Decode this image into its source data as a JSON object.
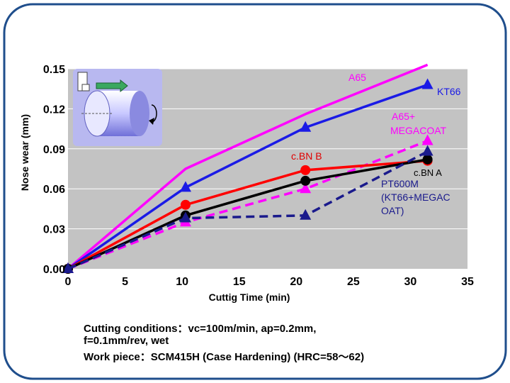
{
  "chart_data": {
    "type": "line",
    "xlabel": "Cuttig Time (min)",
    "ylabel": "Nose wear (mm)",
    "xlim": [
      0,
      35
    ],
    "ylim": [
      0,
      0.15
    ],
    "xticks": [
      "0",
      "5",
      "10",
      "15",
      "20",
      "25",
      "30",
      "35"
    ],
    "yticks": [
      "0.00",
      "0.03",
      "0.06",
      "0.09",
      "0.12",
      "0.15"
    ],
    "grid": "horizontal",
    "legend": "inline labels",
    "series": [
      {
        "name": "A65",
        "color": "#ff00ff",
        "dash": false,
        "marker": "none",
        "points": [
          [
            0,
            0
          ],
          [
            10.3,
            0.075
          ],
          [
            20.8,
            0.116
          ],
          [
            31.5,
            0.153
          ]
        ]
      },
      {
        "name": "KT66",
        "color": "#1a1ae6",
        "dash": false,
        "marker": "triangle",
        "points": [
          [
            0,
            0
          ],
          [
            10.3,
            0.061
          ],
          [
            20.8,
            0.106
          ],
          [
            31.5,
            0.138
          ]
        ]
      },
      {
        "name": "A65+ MEGACOAT",
        "color": "#ff00ff",
        "dash": true,
        "marker": "triangle",
        "points": [
          [
            0,
            0
          ],
          [
            10.3,
            0.035
          ],
          [
            20.8,
            0.06
          ],
          [
            31.5,
            0.096
          ]
        ]
      },
      {
        "name": "c.BN B",
        "color": "#ff0000",
        "dash": false,
        "marker": "circle",
        "points": [
          [
            0,
            0
          ],
          [
            10.3,
            0.048
          ],
          [
            20.8,
            0.074
          ],
          [
            31.5,
            0.081
          ]
        ]
      },
      {
        "name": "c.BN A",
        "color": "#000000",
        "dash": false,
        "marker": "circle",
        "points": [
          [
            0,
            0
          ],
          [
            10.3,
            0.04
          ],
          [
            20.8,
            0.066
          ],
          [
            31.5,
            0.082
          ]
        ]
      },
      {
        "name": "PT600M (KT66+MEGACOAT)",
        "color": "#1a1a8c",
        "dash": true,
        "marker": "triangle",
        "points": [
          [
            0,
            0
          ],
          [
            10.3,
            0.038
          ],
          [
            20.8,
            0.04
          ],
          [
            31.5,
            0.088
          ]
        ]
      }
    ]
  },
  "labels": {
    "a65": "A65",
    "kt66": "KT66",
    "a65mega_1": "A65+",
    "a65mega_2": "MEGACOAT",
    "cbnb": "c.BN B",
    "cbna": "c.BN A",
    "pt600m_1": "PT600M",
    "pt600m_2": "(KT66+MEGAC",
    "pt600m_3": "OAT)"
  },
  "conditions": {
    "line1": "Cutting conditions：vc=100m/min, ap=0.2mm,",
    "line2": "f=0.1mm/rev, wet",
    "line3": "Work piece：SCM415H (Case Hardening) (HRC=58～62)"
  },
  "colors": {
    "plot_bg": "#c3c3c3",
    "frame": "#1f4e8c",
    "inset_bg": "#b8b8f0"
  }
}
